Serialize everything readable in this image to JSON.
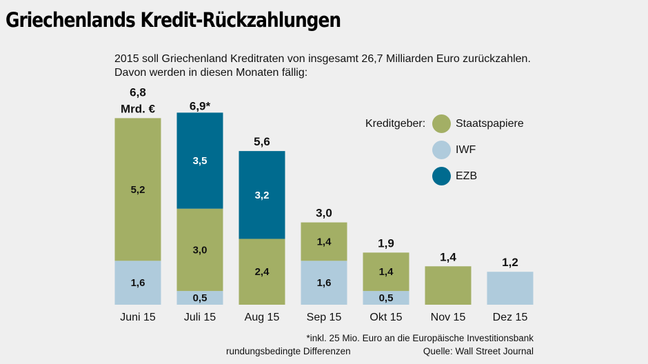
{
  "title": "Griechenlands Kredit-Rückzahlungen",
  "subtitle": [
    "2015 soll Griechenland Kreditraten von insgesamt 26,7 Milliarden Euro zurückzahlen.",
    "Davon werden in diesen Monaten fällig:"
  ],
  "legend": {
    "title": "Kreditgeber:",
    "items": [
      {
        "label": "Staatspapiere",
        "color": "#a3af65"
      },
      {
        "label": "IWF",
        "color": "#afcbdc"
      },
      {
        "label": "EZB",
        "color": "#006b8f"
      }
    ]
  },
  "footnotes": {
    "asterisk": "*inkl. 25 Mio. Euro an die Europäische Investitionsbank",
    "rounding": "rundungsbedingte Differenzen",
    "source": "Quelle: Wall Street Journal"
  },
  "chart_data": {
    "type": "bar",
    "stacked": true,
    "title": "Griechenlands Kredit-Rückzahlungen",
    "unit": "Mrd. €",
    "categories": [
      "Juni 15",
      "Juli 15",
      "Aug 15",
      "Sep 15",
      "Okt 15",
      "Nov 15",
      "Dez 15"
    ],
    "totals": [
      6.8,
      6.9,
      5.6,
      3.0,
      1.9,
      1.4,
      1.2
    ],
    "total_labels": [
      "6,8",
      "6,9*",
      "5,6",
      "3,0",
      "1,9",
      "1,4",
      "1,2"
    ],
    "first_total_unit_label": "Mrd. €",
    "series": [
      {
        "name": "IWF",
        "color": "#afcbdc",
        "text_color": "#111111",
        "values": [
          1.6,
          0.5,
          0,
          1.6,
          0.5,
          0,
          1.2
        ],
        "labels": [
          "1,6",
          "0,5",
          "",
          "1,6",
          "0,5",
          "",
          ""
        ]
      },
      {
        "name": "Staatspapiere",
        "color": "#a3af65",
        "text_color": "#111111",
        "values": [
          5.2,
          3.0,
          2.4,
          1.4,
          1.4,
          1.4,
          0
        ],
        "labels": [
          "5,2",
          "3,0",
          "2,4",
          "1,4",
          "1,4",
          "",
          ""
        ]
      },
      {
        "name": "EZB",
        "color": "#006b8f",
        "text_color": "#ffffff",
        "values": [
          0,
          3.5,
          3.2,
          0,
          0,
          0,
          0
        ],
        "labels": [
          "",
          "3,5",
          "3,2",
          "",
          "",
          "",
          ""
        ]
      }
    ],
    "xlabel": "",
    "ylabel": "",
    "ylim": [
      0,
      7
    ],
    "grid": false,
    "legend_position": "top-right"
  }
}
